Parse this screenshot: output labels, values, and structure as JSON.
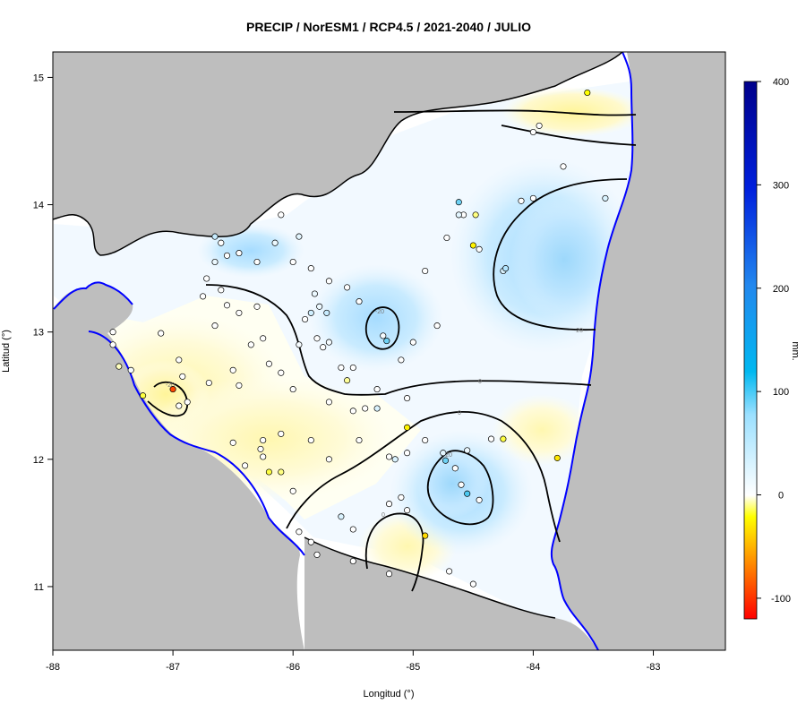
{
  "title": "PRECIP / NorESM1 / RCP4.5 / 2021-2040 / JULIO",
  "axes": {
    "xlabel": "Longitud (°)",
    "ylabel": "Latitud (°)",
    "xlim": [
      -88,
      -82.4
    ],
    "ylim": [
      10.5,
      15.2
    ],
    "xticks": [
      "-88",
      "-87",
      "-86",
      "-85",
      "-84",
      "-83"
    ],
    "yticks": [
      "11",
      "12",
      "13",
      "14",
      "15"
    ]
  },
  "colorbar": {
    "label": "mm.",
    "range": [
      -120,
      400
    ],
    "ticks": [
      "-100",
      "0",
      "100",
      "200",
      "300",
      "400"
    ]
  },
  "contour_labels": [
    "0",
    "-20",
    "-20",
    "-20",
    "-20",
    "0",
    "0",
    "0"
  ],
  "colors": {
    "land_outside": "#bebebe",
    "border": "#0000ff",
    "contour": "#000000"
  },
  "chart_data": {
    "type": "map",
    "title": "PRECIP / NorESM1 / RCP4.5 / 2021-2040 / JULIO",
    "xlabel": "Longitud (°)",
    "ylabel": "Latitud (°)",
    "xlim": [
      -88,
      -82.4
    ],
    "ylim": [
      10.5,
      15.2
    ],
    "colorbar_range": [
      -120,
      400
    ],
    "colorbar_unit": "mm.",
    "stations": [
      {
        "lon": -87.0,
        "lat": 12.55,
        "v": -90
      },
      {
        "lon": -87.25,
        "lat": 12.5,
        "v": -15
      },
      {
        "lon": -87.35,
        "lat": 12.7,
        "v": 5
      },
      {
        "lon": -87.5,
        "lat": 12.9,
        "v": 0
      },
      {
        "lon": -87.5,
        "lat": 13.0,
        "v": 0
      },
      {
        "lon": -87.45,
        "lat": 12.73,
        "v": -5
      },
      {
        "lon": -87.1,
        "lat": 12.99,
        "v": 0
      },
      {
        "lon": -86.95,
        "lat": 12.78,
        "v": 0
      },
      {
        "lon": -86.92,
        "lat": 12.65,
        "v": 0
      },
      {
        "lon": -86.88,
        "lat": 12.45,
        "v": 0
      },
      {
        "lon": -86.95,
        "lat": 12.42,
        "v": 0
      },
      {
        "lon": -86.7,
        "lat": 12.6,
        "v": 0
      },
      {
        "lon": -86.75,
        "lat": 13.28,
        "v": 0
      },
      {
        "lon": -86.72,
        "lat": 13.42,
        "v": 0
      },
      {
        "lon": -86.65,
        "lat": 13.05,
        "v": 0
      },
      {
        "lon": -86.6,
        "lat": 13.33,
        "v": 0
      },
      {
        "lon": -86.55,
        "lat": 13.21,
        "v": 0
      },
      {
        "lon": -86.45,
        "lat": 13.15,
        "v": 0
      },
      {
        "lon": -86.5,
        "lat": 12.7,
        "v": 0
      },
      {
        "lon": -86.45,
        "lat": 12.58,
        "v": 0
      },
      {
        "lon": -86.35,
        "lat": 12.9,
        "v": 0
      },
      {
        "lon": -86.3,
        "lat": 13.2,
        "v": 0
      },
      {
        "lon": -86.25,
        "lat": 12.95,
        "v": 0
      },
      {
        "lon": -86.2,
        "lat": 12.75,
        "v": 0
      },
      {
        "lon": -86.1,
        "lat": 12.68,
        "v": 0
      },
      {
        "lon": -86.0,
        "lat": 12.55,
        "v": 0
      },
      {
        "lon": -85.95,
        "lat": 12.9,
        "v": 5
      },
      {
        "lon": -85.8,
        "lat": 12.95,
        "v": 0
      },
      {
        "lon": -85.9,
        "lat": 13.1,
        "v": 0
      },
      {
        "lon": -85.82,
        "lat": 13.3,
        "v": 10
      },
      {
        "lon": -85.85,
        "lat": 13.15,
        "v": 25
      },
      {
        "lon": -85.78,
        "lat": 13.2,
        "v": 10
      },
      {
        "lon": -85.72,
        "lat": 13.15,
        "v": 30
      },
      {
        "lon": -85.75,
        "lat": 12.88,
        "v": 0
      },
      {
        "lon": -85.7,
        "lat": 12.92,
        "v": 5
      },
      {
        "lon": -85.6,
        "lat": 12.72,
        "v": 0
      },
      {
        "lon": -85.55,
        "lat": 12.62,
        "v": -8
      },
      {
        "lon": -85.5,
        "lat": 12.72,
        "v": 0
      },
      {
        "lon": -85.55,
        "lat": 13.35,
        "v": 0
      },
      {
        "lon": -85.45,
        "lat": 13.24,
        "v": 0
      },
      {
        "lon": -85.7,
        "lat": 13.4,
        "v": 0
      },
      {
        "lon": -85.85,
        "lat": 13.5,
        "v": 0
      },
      {
        "lon": -86.0,
        "lat": 13.55,
        "v": 0
      },
      {
        "lon": -86.15,
        "lat": 13.7,
        "v": 10
      },
      {
        "lon": -86.3,
        "lat": 13.55,
        "v": 0
      },
      {
        "lon": -86.45,
        "lat": 13.62,
        "v": 0
      },
      {
        "lon": -86.55,
        "lat": 13.6,
        "v": 0
      },
      {
        "lon": -86.65,
        "lat": 13.55,
        "v": 10
      },
      {
        "lon": -86.65,
        "lat": 13.75,
        "v": 30
      },
      {
        "lon": -86.6,
        "lat": 13.7,
        "v": 0
      },
      {
        "lon": -86.1,
        "lat": 13.92,
        "v": 0
      },
      {
        "lon": -85.95,
        "lat": 13.75,
        "v": 15
      },
      {
        "lon": -85.25,
        "lat": 12.97,
        "v": 5
      },
      {
        "lon": -85.22,
        "lat": 12.93,
        "v": 60
      },
      {
        "lon": -85.0,
        "lat": 12.92,
        "v": 0
      },
      {
        "lon": -85.1,
        "lat": 12.78,
        "v": 0
      },
      {
        "lon": -85.3,
        "lat": 12.55,
        "v": 0
      },
      {
        "lon": -85.4,
        "lat": 12.4,
        "v": 0
      },
      {
        "lon": -85.5,
        "lat": 12.38,
        "v": 0
      },
      {
        "lon": -85.7,
        "lat": 12.45,
        "v": 0
      },
      {
        "lon": -85.3,
        "lat": 12.4,
        "v": 20
      },
      {
        "lon": -85.05,
        "lat": 12.25,
        "v": -25
      },
      {
        "lon": -84.9,
        "lat": 12.15,
        "v": 0
      },
      {
        "lon": -85.15,
        "lat": 12.0,
        "v": 20
      },
      {
        "lon": -85.2,
        "lat": 12.02,
        "v": 0
      },
      {
        "lon": -85.05,
        "lat": 12.05,
        "v": 0
      },
      {
        "lon": -84.75,
        "lat": 12.05,
        "v": 15
      },
      {
        "lon": -84.73,
        "lat": 11.99,
        "v": 60
      },
      {
        "lon": -84.65,
        "lat": 11.93,
        "v": 0
      },
      {
        "lon": -84.6,
        "lat": 11.8,
        "v": 0
      },
      {
        "lon": -84.55,
        "lat": 11.73,
        "v": 70
      },
      {
        "lon": -84.45,
        "lat": 11.68,
        "v": 0
      },
      {
        "lon": -84.35,
        "lat": 12.16,
        "v": 0
      },
      {
        "lon": -84.25,
        "lat": 12.16,
        "v": -15
      },
      {
        "lon": -84.55,
        "lat": 12.07,
        "v": 10
      },
      {
        "lon": -85.45,
        "lat": 12.15,
        "v": 0
      },
      {
        "lon": -85.7,
        "lat": 12.0,
        "v": 0
      },
      {
        "lon": -85.85,
        "lat": 12.15,
        "v": 0
      },
      {
        "lon": -86.1,
        "lat": 12.2,
        "v": 0
      },
      {
        "lon": -86.25,
        "lat": 12.15,
        "v": 0
      },
      {
        "lon": -86.27,
        "lat": 12.08,
        "v": 0
      },
      {
        "lon": -86.25,
        "lat": 12.02,
        "v": 0
      },
      {
        "lon": -86.2,
        "lat": 11.9,
        "v": -15
      },
      {
        "lon": -86.1,
        "lat": 11.9,
        "v": -10
      },
      {
        "lon": -86.0,
        "lat": 11.75,
        "v": 0
      },
      {
        "lon": -86.4,
        "lat": 11.95,
        "v": 0
      },
      {
        "lon": -86.5,
        "lat": 12.13,
        "v": 0
      },
      {
        "lon": -85.95,
        "lat": 11.43,
        "v": 0
      },
      {
        "lon": -85.85,
        "lat": 11.35,
        "v": 0
      },
      {
        "lon": -85.6,
        "lat": 11.55,
        "v": 20
      },
      {
        "lon": -85.5,
        "lat": 11.45,
        "v": 0
      },
      {
        "lon": -85.2,
        "lat": 11.65,
        "v": 0
      },
      {
        "lon": -85.05,
        "lat": 11.6,
        "v": 0
      },
      {
        "lon": -85.1,
        "lat": 11.7,
        "v": 0
      },
      {
        "lon": -84.9,
        "lat": 11.4,
        "v": -35
      },
      {
        "lon": -85.8,
        "lat": 11.25,
        "v": 0
      },
      {
        "lon": -85.5,
        "lat": 11.2,
        "v": 0
      },
      {
        "lon": -85.2,
        "lat": 11.1,
        "v": 0
      },
      {
        "lon": -84.7,
        "lat": 11.12,
        "v": 0
      },
      {
        "lon": -84.5,
        "lat": 11.02,
        "v": 0
      },
      {
        "lon": -84.45,
        "lat": 13.65,
        "v": 0
      },
      {
        "lon": -84.5,
        "lat": 13.68,
        "v": -25
      },
      {
        "lon": -84.58,
        "lat": 13.92,
        "v": 0
      },
      {
        "lon": -84.62,
        "lat": 14.02,
        "v": 60
      },
      {
        "lon": -84.62,
        "lat": 13.92,
        "v": 15
      },
      {
        "lon": -84.48,
        "lat": 13.92,
        "v": -10
      },
      {
        "lon": -84.72,
        "lat": 13.74,
        "v": 0
      },
      {
        "lon": -84.9,
        "lat": 13.48,
        "v": 0
      },
      {
        "lon": -84.8,
        "lat": 13.05,
        "v": 0
      },
      {
        "lon": -84.25,
        "lat": 13.48,
        "v": 20
      },
      {
        "lon": -84.23,
        "lat": 13.5,
        "v": 40
      },
      {
        "lon": -84.1,
        "lat": 14.03,
        "v": 0
      },
      {
        "lon": -84.0,
        "lat": 14.05,
        "v": 0
      },
      {
        "lon": -84.0,
        "lat": 14.57,
        "v": 0
      },
      {
        "lon": -83.95,
        "lat": 14.62,
        "v": 0
      },
      {
        "lon": -83.75,
        "lat": 14.3,
        "v": 0
      },
      {
        "lon": -83.4,
        "lat": 14.05,
        "v": 20
      },
      {
        "lon": -83.55,
        "lat": 14.88,
        "v": -20
      },
      {
        "lon": -83.8,
        "lat": 12.01,
        "v": -30
      },
      {
        "lon": -85.05,
        "lat": 12.48,
        "v": 0
      }
    ]
  }
}
